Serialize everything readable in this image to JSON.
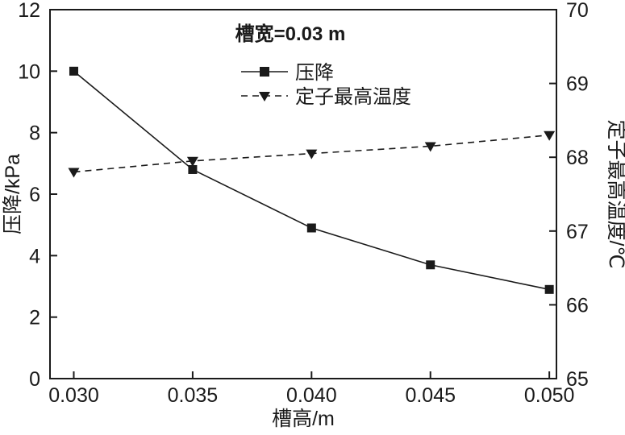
{
  "chart_data": {
    "type": "line",
    "annotation": "槽宽=0.03 m",
    "xlabel": "槽高/m",
    "ylabel_left": "压降/kPa",
    "ylabel_right": "定子最高温度/℃",
    "x": [
      0.03,
      0.035,
      0.04,
      0.045,
      0.05
    ],
    "x_ticks": [
      "0.030",
      "0.035",
      "0.040",
      "0.045",
      "0.050"
    ],
    "xlim": [
      0.029,
      0.0503
    ],
    "y_left": {
      "min": 0,
      "max": 12,
      "ticks": [
        0,
        2,
        4,
        6,
        8,
        10,
        12
      ]
    },
    "y_right": {
      "min": 65,
      "max": 70,
      "ticks": [
        65,
        66,
        67,
        68,
        69,
        70
      ]
    },
    "series": [
      {
        "name": "压降",
        "axis": "left",
        "marker": "square",
        "line_style": "solid",
        "values": [
          10.0,
          6.8,
          4.9,
          3.7,
          2.9
        ]
      },
      {
        "name": "定子最高温度",
        "axis": "right",
        "marker": "triangle-down",
        "line_style": "dashed",
        "values": [
          67.8,
          67.95,
          68.05,
          68.15,
          68.3
        ]
      }
    ],
    "color": "#1a1a1a",
    "legend_position": "top-center",
    "grid": "off"
  }
}
